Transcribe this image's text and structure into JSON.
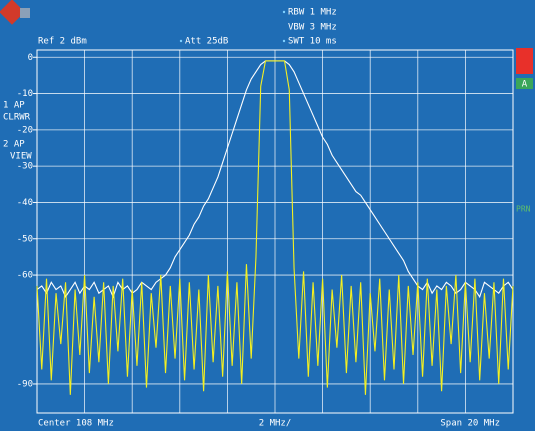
{
  "chart_data": {
    "type": "line",
    "header": {
      "ref": "Ref 2 dBm",
      "att": "Att 25dB",
      "rbw": "RBW 1 MHz",
      "vbw": "VBW 3 MHz",
      "swt": "SWT 10 ms"
    },
    "footer": {
      "center": "Center 108 MHz",
      "div": "2 MHz/",
      "span": "Span 20 MHz"
    },
    "side": {
      "marker": "A",
      "prn": "PRN"
    },
    "ylim": [
      -98,
      2
    ],
    "yticks": [
      0,
      -10,
      -20,
      -30,
      -40,
      -50,
      -60,
      -90
    ],
    "grid": true,
    "series": [
      {
        "name": "1 AP",
        "mode": "CLRWR",
        "color": "#f5f020",
        "values": [
          -63,
          -86,
          -61,
          -89,
          -65,
          -79,
          -62,
          -93,
          -64,
          -82,
          -60,
          -87,
          -66,
          -84,
          -62,
          -90,
          -63,
          -81,
          -61,
          -88,
          -64,
          -85,
          -62,
          -91,
          -65,
          -80,
          -60,
          -87,
          -63,
          -83,
          -61,
          -89,
          -62,
          -86,
          -64,
          -92,
          -60,
          -84,
          -63,
          -88,
          -59,
          -85,
          -62,
          -90,
          -57,
          -83,
          -55,
          -8,
          -1,
          -1,
          -1,
          -1,
          -1,
          -9,
          -58,
          -83,
          -59,
          -88,
          -62,
          -85,
          -61,
          -91,
          -64,
          -80,
          -60,
          -87,
          -63,
          -84,
          -62,
          -93,
          -65,
          -81,
          -61,
          -89,
          -64,
          -86,
          -60,
          -90,
          -63,
          -82,
          -62,
          -88,
          -61,
          -85,
          -64,
          -92,
          -63,
          -79,
          -60,
          -87,
          -62,
          -84,
          -61,
          -89,
          -65,
          -83,
          -62,
          -90,
          -61,
          -86,
          -63
        ]
      },
      {
        "name": "2 AP",
        "mode": "VIEW",
        "color": "#ffffff",
        "values": [
          -64,
          -63,
          -65,
          -62,
          -64,
          -63,
          -66,
          -64,
          -62,
          -65,
          -63,
          -64,
          -62,
          -65,
          -64,
          -63,
          -66,
          -62,
          -64,
          -63,
          -65,
          -64,
          -62,
          -63,
          -64,
          -62,
          -61,
          -60,
          -58,
          -55,
          -53,
          -51,
          -49,
          -46,
          -44,
          -41,
          -39,
          -36,
          -33,
          -29,
          -25,
          -21,
          -17,
          -13,
          -9,
          -6,
          -4,
          -2,
          -1,
          -1,
          -1,
          -1,
          -1,
          -2,
          -4,
          -7,
          -10,
          -13,
          -16,
          -19,
          -22,
          -24,
          -27,
          -29,
          -31,
          -33,
          -35,
          -37,
          -38,
          -40,
          -42,
          -44,
          -46,
          -48,
          -50,
          -52,
          -54,
          -56,
          -59,
          -61,
          -63,
          -64,
          -62,
          -65,
          -63,
          -64,
          -62,
          -63,
          -65,
          -64,
          -62,
          -63,
          -64,
          -66,
          -62,
          -63,
          -64,
          -65,
          -63,
          -62,
          -64
        ]
      }
    ]
  }
}
